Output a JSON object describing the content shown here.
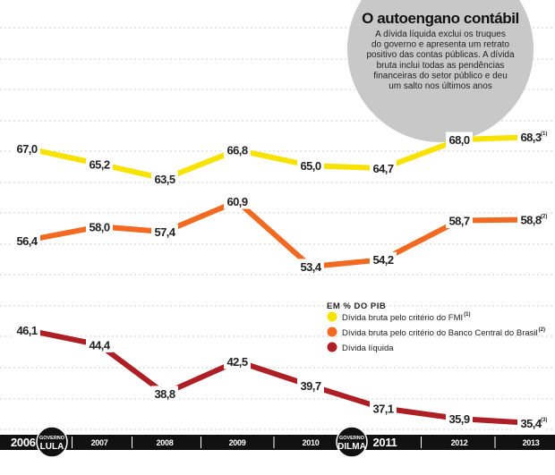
{
  "header": {
    "title": "O autoengano contábil",
    "subtitle_lines": [
      "A dívida líquida exclui os truques",
      "do governo e apresenta um retrato",
      "positivo das contas públicas. A dívida",
      "bruta inclui todas as pendências",
      "financeiras do setor público e deu",
      "um salto nos últimos anos"
    ]
  },
  "legend": {
    "unit": "EM % DO PIB",
    "items": [
      {
        "label": "Dívida bruta pelo critério do FMI",
        "sup": "(1)",
        "color": "#f7e200"
      },
      {
        "label": "Dívida bruta pelo critério do Banco Central do Brasil",
        "sup": "(2)",
        "color": "#f26a21"
      },
      {
        "label": "Dívida líquida",
        "sup": "",
        "color": "#ad1f24"
      }
    ]
  },
  "governments": [
    {
      "line1": "GOVERNO",
      "line2": "LULA"
    },
    {
      "line1": "GOVERNO",
      "line2": "DILMA"
    }
  ],
  "colors": {
    "fmi": "#f7e200",
    "bcb": "#f26a21",
    "liquida": "#ad1f24",
    "bar": "#111111",
    "grid": "#cfcfcf",
    "badge": "#c8c8c8"
  },
  "chart_data": {
    "type": "line",
    "title": "O autoengano contábil",
    "ylabel": "EM % DO PIB",
    "categories": [
      "2006",
      "2007",
      "2008",
      "2009",
      "2010",
      "2011",
      "2012",
      "2013"
    ],
    "value_labels": [
      [
        "67,0",
        "65,2",
        "63,5",
        "66,8",
        "65,0",
        "64,7",
        "68,0",
        "68,3"
      ],
      [
        "56,4",
        "58,0",
        "57,4",
        "60,9",
        "53,4",
        "54,2",
        "58,7",
        "58,8"
      ],
      [
        "46,1",
        "44,4",
        "38,8",
        "42,5",
        "39,7",
        "37,1",
        "35,9",
        "35,4"
      ]
    ],
    "last_superscripts": [
      "(1)",
      "(2)",
      "(3)"
    ],
    "series": [
      {
        "name": "Dívida bruta pelo critério do FMI",
        "values": [
          67.0,
          65.2,
          63.5,
          66.8,
          65.0,
          64.7,
          68.0,
          68.3
        ]
      },
      {
        "name": "Dívida bruta pelo critério do Banco Central do Brasil",
        "values": [
          56.4,
          58.0,
          57.4,
          60.9,
          53.4,
          54.2,
          58.7,
          58.8
        ]
      },
      {
        "name": "Dívida líquida",
        "values": [
          46.1,
          44.4,
          38.8,
          42.5,
          39.7,
          37.1,
          35.9,
          35.4
        ]
      }
    ],
    "grid": true
  }
}
